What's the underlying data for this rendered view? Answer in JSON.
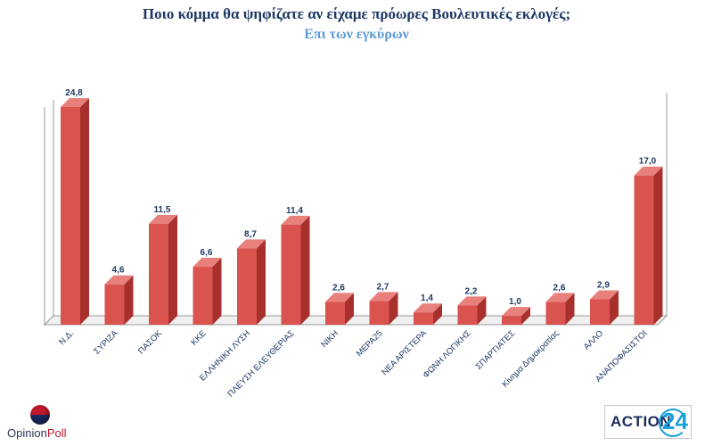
{
  "header": {
    "title": "Ποιο κόμμα θα ψηφίζατε αν είχαμε πρόωρες Βουλευτικές εκλογές;",
    "subtitle": "Επι των εγκύρων"
  },
  "chart_data": {
    "type": "bar",
    "title": "Ποιο κόμμα θα ψηφίζατε αν είχαμε πρόωρες Βουλευτικές εκλογές;",
    "subtitle": "Επι των εγκύρων",
    "categories": [
      "Ν.Δ.",
      "ΣΥΡΙΖΑ",
      "ΠΑΣΟΚ",
      "ΚΚΕ",
      "ΕΛΛΗΝΙΚΗ ΛΥΣΗ",
      "ΠΛΕΥΣΗ ΕΛΕΥΘΕΡΙΑΣ",
      "ΝΙΚΗ",
      "ΜΕΡΑ25",
      "ΝΕΑ ΑΡΙΣΤΕΡΑ",
      "ΦΩΝΗ ΛΟΓΙΚΗΣ",
      "ΣΠΑΡΤΙΑΤΕΣ",
      "Κίνημα Δημοκρατίας",
      "ΑΛΛΟ",
      "ΑΝΑΠΟΦΑΣΙΣΤΟΙ"
    ],
    "values": [
      24.8,
      4.6,
      11.5,
      6.6,
      8.7,
      11.4,
      2.6,
      2.7,
      1.4,
      2.2,
      1.0,
      2.6,
      2.9,
      17.0
    ],
    "labels": [
      "24,8",
      "4,6",
      "11,5",
      "6,6",
      "8,7",
      "11,4",
      "2,6",
      "2,7",
      "1,4",
      "2,2",
      "1,0",
      "2,6",
      "2,9",
      "17,0"
    ],
    "xlabel": "",
    "ylabel": "",
    "ylim": [
      0,
      25
    ],
    "grid": false,
    "style": "3d-bar",
    "colors": {
      "bar_front": "#d9534f",
      "bar_side": "#a8302c",
      "bar_top": "#e8807c",
      "label": "#1f3864",
      "axis_label": "#1f3864",
      "frame": "#9a9a9a"
    }
  },
  "logos": {
    "opinionpoll": {
      "text_a": "Opinion",
      "text_b": "Poll"
    },
    "action24": {
      "text": "ACTION",
      "number": "24"
    }
  }
}
